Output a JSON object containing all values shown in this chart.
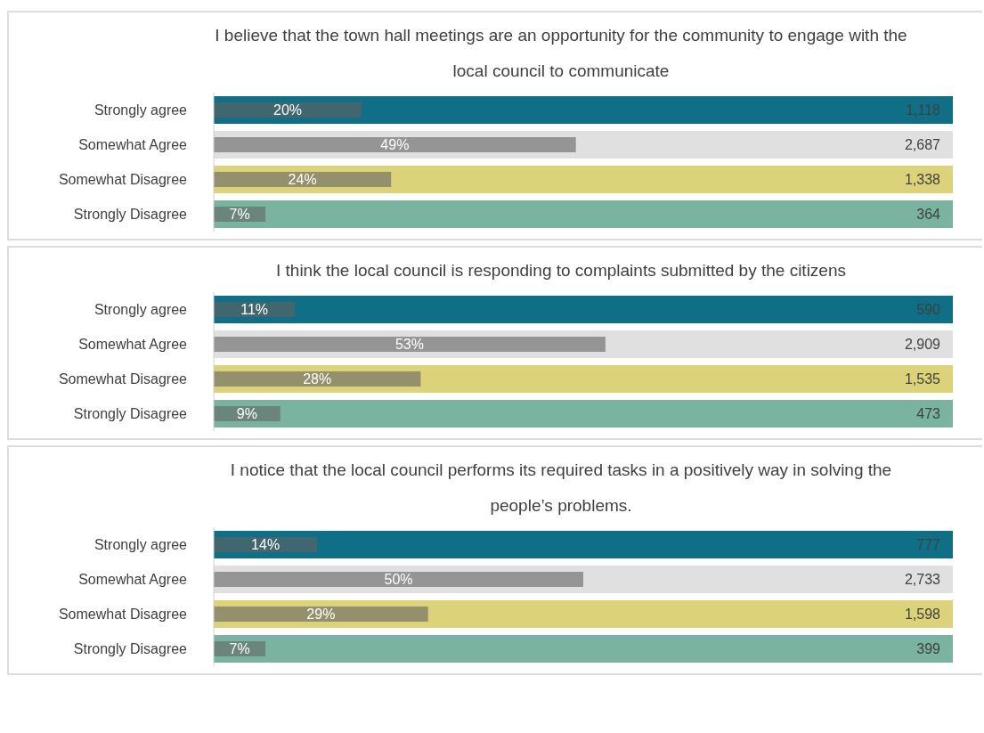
{
  "chart_data": [
    {
      "type": "bar",
      "orientation": "horizontal",
      "title": "I believe that the town hall meetings are an opportunity for the community to engage with the local council to communicate",
      "categories": [
        "Strongly agree",
        "Somewhat Agree",
        "Somewhat Disagree",
        "Strongly Disagree"
      ],
      "xlim": [
        0,
        100
      ],
      "legend": false,
      "annotations": [
        {
          "text": "1,118",
          "y": "Strongly agree"
        },
        {
          "text": "2,687",
          "y": "Somewhat Agree"
        },
        {
          "text": "1,338",
          "y": "Somewhat Disagree"
        },
        {
          "text": "364",
          "y": "Strongly Disagree"
        }
      ],
      "series": [
        {
          "colors": [
            "#0e6f87",
            "#e0e0e0",
            "#dcd27a",
            "#7ab3a0"
          ],
          "values": [
            100,
            100,
            100,
            100
          ]
        },
        {
          "colors": [
            "#41666e",
            "#959595",
            "#948f6c",
            "#6b857d"
          ],
          "values": [
            20,
            49,
            24,
            7
          ],
          "value_labels": [
            "20%",
            "49%",
            "24%",
            "7%"
          ]
        }
      ]
    },
    {
      "type": "bar",
      "orientation": "horizontal",
      "title": "I think the local council is responding to complaints submitted by the citizens",
      "categories": [
        "Strongly agree",
        "Somewhat Agree",
        "Somewhat Disagree",
        "Strongly Disagree"
      ],
      "xlim": [
        0,
        100
      ],
      "legend": false,
      "annotations": [
        {
          "text": "590",
          "y": "Strongly agree"
        },
        {
          "text": "2,909",
          "y": "Somewhat Agree"
        },
        {
          "text": "1,535",
          "y": "Somewhat Disagree"
        },
        {
          "text": "473",
          "y": "Strongly Disagree"
        }
      ],
      "series": [
        {
          "colors": [
            "#0e6f87",
            "#e0e0e0",
            "#dcd27a",
            "#7ab3a0"
          ],
          "values": [
            100,
            100,
            100,
            100
          ]
        },
        {
          "colors": [
            "#41666e",
            "#959595",
            "#948f6c",
            "#6b857d"
          ],
          "values": [
            11,
            53,
            28,
            9
          ],
          "value_labels": [
            "11%",
            "53%",
            "28%",
            "9%"
          ]
        }
      ]
    },
    {
      "type": "bar",
      "orientation": "horizontal",
      "title": "I notice that the local council performs its required tasks in a positively way in solving the people’s problems.",
      "categories": [
        "Strongly agree",
        "Somewhat Agree",
        "Somewhat Disagree",
        "Strongly Disagree"
      ],
      "xlim": [
        0,
        100
      ],
      "legend": false,
      "annotations": [
        {
          "text": "777",
          "y": "Strongly agree"
        },
        {
          "text": "2,733",
          "y": "Somewhat Agree"
        },
        {
          "text": "1,598",
          "y": "Somewhat Disagree"
        },
        {
          "text": "399",
          "y": "Strongly Disagree"
        }
      ],
      "series": [
        {
          "colors": [
            "#0e6f87",
            "#e0e0e0",
            "#dcd27a",
            "#7ab3a0"
          ],
          "values": [
            100,
            100,
            100,
            100
          ]
        },
        {
          "colors": [
            "#41666e",
            "#959595",
            "#948f6c",
            "#6b857d"
          ],
          "values": [
            14,
            50,
            29,
            7
          ],
          "value_labels": [
            "14%",
            "50%",
            "29%",
            "7%"
          ]
        }
      ]
    }
  ]
}
